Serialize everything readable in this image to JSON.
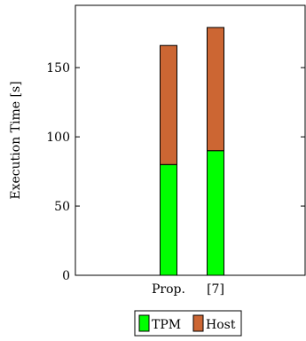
{
  "chart_data": {
    "type": "bar",
    "stacked": true,
    "categories": [
      "Prop.",
      "[7]"
    ],
    "series": [
      {
        "name": "TPM",
        "values": [
          80,
          90
        ],
        "color": "#00ff00"
      },
      {
        "name": "Host",
        "values": [
          86,
          89
        ],
        "color": "#cc6633"
      }
    ],
    "ylabel": "Execution Time [s]",
    "xlabel": "",
    "ylim": [
      0,
      195
    ],
    "yticks": [
      0,
      50,
      100,
      150
    ],
    "grid": false,
    "legend": "bottom-center"
  }
}
